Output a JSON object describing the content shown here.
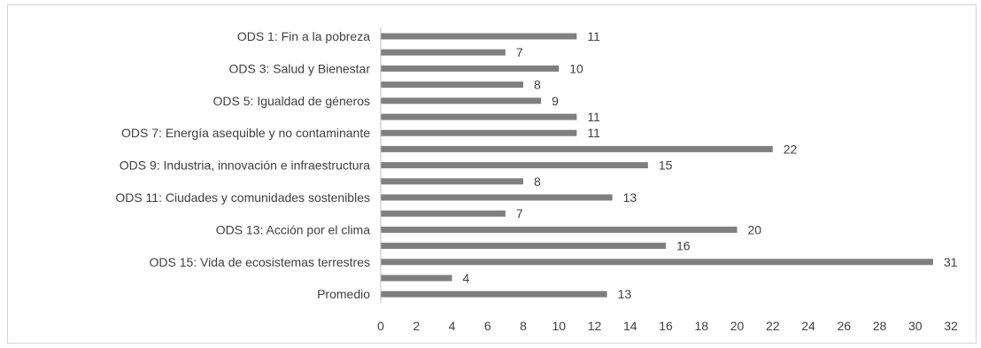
{
  "chart_data": {
    "type": "bar",
    "orientation": "horizontal",
    "categories": [
      "ODS 1: Fin a la pobreza",
      "",
      "ODS 3: Salud y Bienestar",
      "",
      "ODS 5: Igualdad de géneros",
      "",
      "ODS 7: Energía asequible y no contaminante",
      "",
      "ODS 9: Industria, innovación e infraestructura",
      "",
      "ODS 11: Ciudades y comunidades sostenibles",
      "",
      "ODS 13: Acción por el clima",
      "",
      "ODS 15: Vida de ecosistemas terrestres",
      "",
      "Promedio"
    ],
    "values": [
      11,
      7,
      10,
      8,
      9,
      11,
      11,
      22,
      15,
      8,
      13,
      7,
      20,
      16,
      31,
      4,
      12.7
    ],
    "value_labels": [
      "11",
      "7",
      "10",
      "8",
      "9",
      "11",
      "11",
      "22",
      "15",
      "8",
      "13",
      "7",
      "20",
      "16",
      "31",
      "4",
      "13"
    ],
    "xlim": [
      0,
      32
    ],
    "x_ticks": [
      "0",
      "2",
      "4",
      "6",
      "8",
      "10",
      "12",
      "14",
      "16",
      "18",
      "20",
      "22",
      "24",
      "26",
      "28",
      "30",
      "32"
    ],
    "grid": false,
    "legend": "none",
    "bar_color": "#7f7f7f"
  }
}
